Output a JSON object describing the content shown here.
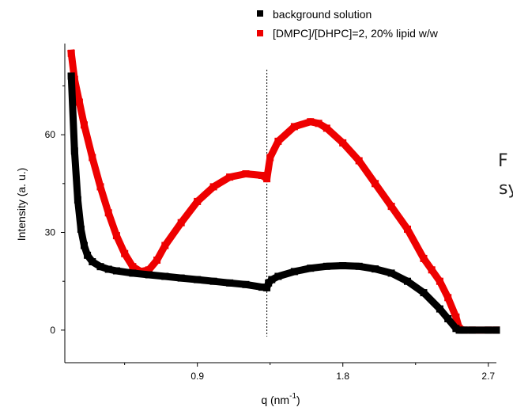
{
  "chart_data": {
    "type": "scatter",
    "xlabel": "q (nm",
    "xlabel_sup": "-1",
    "xlabel_end": ")",
    "ylabel": "Intensity (a. u.)",
    "xlim": [
      0.08,
      2.75
    ],
    "ylim": [
      -10,
      88
    ],
    "x_ticks": [
      {
        "value": 0.9,
        "label": "0.9"
      },
      {
        "value": 1.8,
        "label": "1.8"
      },
      {
        "value": 2.7,
        "label": "2.7"
      }
    ],
    "y_ticks": [
      {
        "value": 0,
        "label": "0"
      },
      {
        "value": 30,
        "label": "30"
      },
      {
        "value": 60,
        "label": "60"
      }
    ],
    "vline_x": 1.33,
    "legend_position": "top-right",
    "colors": {
      "background": "#000000",
      "lipid": "#ee0000"
    },
    "series": [
      {
        "name": "background solution",
        "color": "#000000",
        "x": [
          0.12,
          0.14,
          0.16,
          0.18,
          0.2,
          0.22,
          0.25,
          0.3,
          0.35,
          0.4,
          0.5,
          0.6,
          0.7,
          0.8,
          0.9,
          1.0,
          1.1,
          1.2,
          1.3,
          1.33,
          1.34,
          1.36,
          1.4,
          1.5,
          1.6,
          1.7,
          1.8,
          1.9,
          2.0,
          2.1,
          2.2,
          2.3,
          2.4,
          2.45,
          2.5,
          2.52,
          2.55,
          2.6,
          2.7,
          2.75
        ],
        "y": [
          78,
          55,
          40,
          31,
          26,
          23,
          21,
          19.5,
          18.7,
          18.2,
          17.5,
          17,
          16.5,
          16,
          15.5,
          15,
          14.5,
          14,
          13.2,
          13,
          14.5,
          15.5,
          16.5,
          18,
          19,
          19.6,
          19.8,
          19.6,
          18.8,
          17.5,
          15,
          11.5,
          6.5,
          3.5,
          0.5,
          0,
          0,
          0,
          0,
          0
        ]
      },
      {
        "name": "[DMPC]/[DHPC]=2, 20% lipid w/w",
        "color": "#ee0000",
        "x": [
          0.12,
          0.14,
          0.17,
          0.2,
          0.25,
          0.3,
          0.35,
          0.4,
          0.45,
          0.5,
          0.55,
          0.6,
          0.65,
          0.7,
          0.8,
          0.9,
          1.0,
          1.1,
          1.2,
          1.3,
          1.33,
          1.35,
          1.4,
          1.5,
          1.6,
          1.65,
          1.7,
          1.8,
          1.9,
          2.0,
          2.1,
          2.2,
          2.3,
          2.35,
          2.4,
          2.45,
          2.5,
          2.52,
          2.55,
          2.6,
          2.7,
          2.75
        ],
        "y": [
          85,
          77,
          70,
          63,
          53,
          44,
          36,
          29,
          23.5,
          19.5,
          18,
          18.5,
          21.5,
          26,
          33,
          39.5,
          44,
          47,
          48,
          47.5,
          46.5,
          53,
          58,
          62.5,
          64,
          63.5,
          62,
          57.5,
          52,
          45,
          38,
          31,
          22,
          18.5,
          15,
          10,
          4,
          0.5,
          0,
          0,
          0,
          0
        ]
      }
    ]
  },
  "side_text": {
    "line1": "F",
    "line2": "sy"
  }
}
